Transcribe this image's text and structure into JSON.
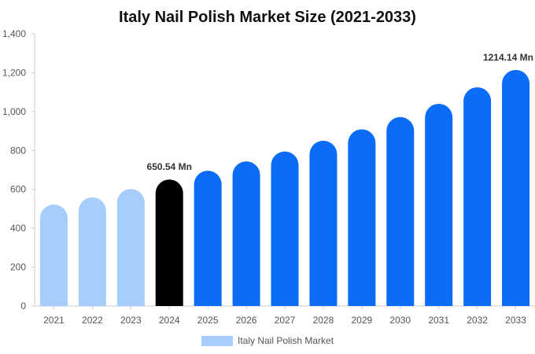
{
  "chart_data": {
    "type": "bar",
    "title": "Italy Nail Polish Market Size (2021-2033)",
    "xlabel": "",
    "ylabel": "",
    "categories": [
      "2021",
      "2022",
      "2023",
      "2024",
      "2025",
      "2026",
      "2027",
      "2028",
      "2029",
      "2030",
      "2031",
      "2032",
      "2033"
    ],
    "series": [
      {
        "name": "Italy Nail Polish Market",
        "values": [
          522,
          559,
          602,
          650.54,
          696,
          744,
          795,
          850,
          909,
          972,
          1040,
          1125,
          1214.14
        ]
      }
    ],
    "bar_colors": [
      "#a6cefa",
      "#a6cefa",
      "#a6cefa",
      "#000000",
      "#0a6cf7",
      "#0a6cf7",
      "#0a6cf7",
      "#0a6cf7",
      "#0a6cf7",
      "#0a6cf7",
      "#0a6cf7",
      "#0a6cf7",
      "#0a6cf7"
    ],
    "data_labels": [
      {
        "index": 3,
        "text": "650.54 Mn"
      },
      {
        "index": 12,
        "text": "1214.14 Mn"
      }
    ],
    "ylim": [
      0,
      1400
    ],
    "yticks": [
      0,
      200,
      400,
      600,
      800,
      1000,
      1200,
      1400
    ],
    "ytick_labels": [
      "0",
      "200",
      "400",
      "600",
      "800",
      "1,000",
      "1,200",
      "1,400"
    ],
    "grid": false,
    "legend": {
      "position": "bottom",
      "color": "#a6cefa"
    }
  }
}
